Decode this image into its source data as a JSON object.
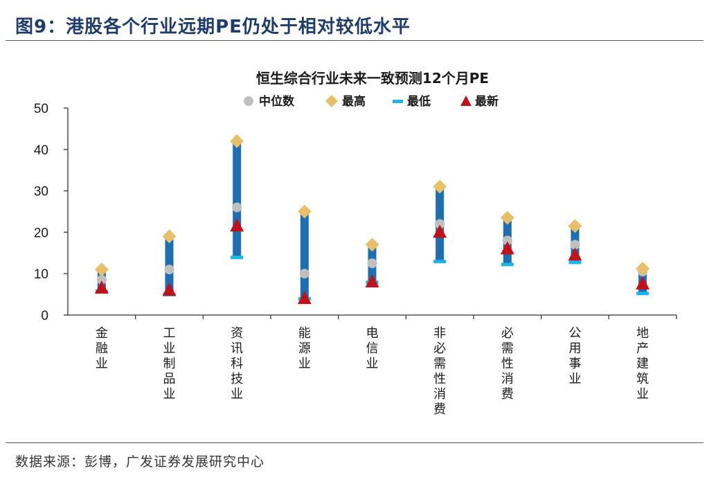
{
  "figure_title": "图9：港股各个行业远期PE仍处于相对较低水平",
  "source_note": "数据来源：彭博，广发证券发展研究中心",
  "colors": {
    "range_bar": "#1f6fb0",
    "median": "#bfbfbf",
    "high": "#e8c06a",
    "low": "#1fb3e8",
    "latest": "#c0121b",
    "title_text": "#1f3c6b"
  },
  "chart_data": {
    "type": "range-dot",
    "title": "恒生综合行业未来一致预测12个月PE",
    "legend": [
      "中位数",
      "最高",
      "最低",
      "最新"
    ],
    "ylim": [
      0,
      50
    ],
    "yticks": [
      0,
      10,
      20,
      30,
      40,
      50
    ],
    "categories": [
      "金融业",
      "工业制品业",
      "资讯科技业",
      "能源业",
      "电信业",
      "非必需性消费",
      "必需性消费",
      "公用事业",
      "地产建筑业"
    ],
    "series": [
      {
        "name": "中位数",
        "values": [
          8.5,
          11,
          26,
          10,
          12.5,
          22,
          18,
          17,
          10.5
        ]
      },
      {
        "name": "最高",
        "values": [
          11,
          19,
          42,
          25,
          17,
          31,
          23.5,
          21.5,
          11.2
        ]
      },
      {
        "name": "最低",
        "values": [
          5.8,
          5,
          14,
          4,
          8,
          13,
          12.3,
          12.8,
          5.3
        ]
      },
      {
        "name": "最新",
        "values": [
          6.5,
          6,
          21.5,
          4,
          8,
          20,
          16,
          14.5,
          7.5
        ]
      }
    ]
  }
}
